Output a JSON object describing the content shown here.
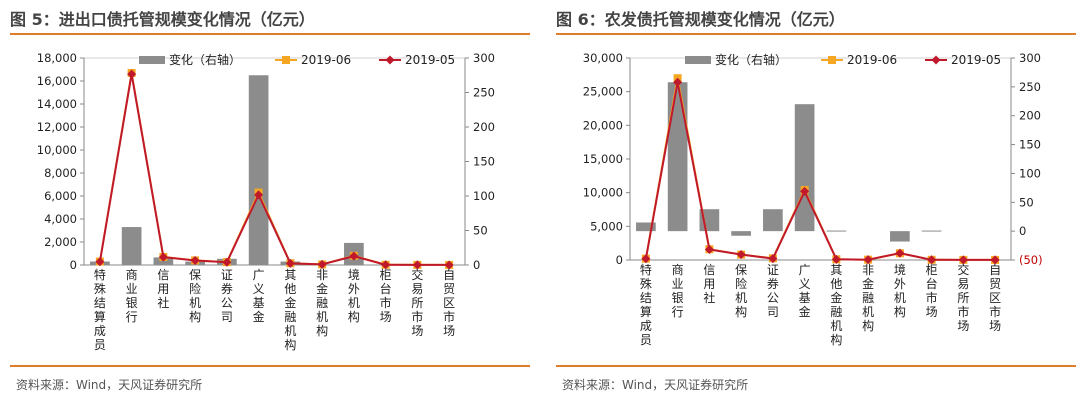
{
  "colors": {
    "accent": "#e07b2a",
    "bar": "#8c8c8c",
    "line_2019_06": "#f5a623",
    "line_2019_05": "#c0192c",
    "negative_tick": "#c00000"
  },
  "charts": [
    {
      "title": "图 5：进出口债托管规模变化情况（亿元）",
      "source": "资料来源：Wind，天风证券研究所",
      "chart_data": {
        "type": "bar",
        "categories": [
          "特殊结算成员",
          "商业银行",
          "信用社",
          "保险机构",
          "证券公司",
          "广义基金",
          "其他金融机构",
          "非金融机构",
          "境外机构",
          "柜台市场",
          "交易所市场",
          "自贸区市场"
        ],
        "yticks_left": [
          "0",
          "2,000",
          "4,000",
          "6,000",
          "8,000",
          "10,000",
          "12,000",
          "14,000",
          "16,000",
          "18,000"
        ],
        "yticks_right": [
          "0",
          "50",
          "100",
          "150",
          "200",
          "250",
          "300"
        ],
        "ylim_left": [
          0,
          18000
        ],
        "ylim_right": [
          0,
          300
        ],
        "legend": [
          "变化（右轴）",
          "2019-06",
          "2019-05"
        ],
        "series": [
          {
            "name": "变化（右轴）",
            "type": "bar",
            "axis": "right",
            "values": [
              5,
              55,
              11,
              5,
              9,
              275,
              5,
              1,
              32,
              0,
              0,
              0
            ]
          },
          {
            "name": "2019-06",
            "type": "line",
            "axis": "left",
            "values": [
              300,
              16700,
              700,
              400,
              250,
              6300,
              150,
              50,
              800,
              20,
              10,
              5
            ]
          },
          {
            "name": "2019-05",
            "type": "line",
            "axis": "left",
            "values": [
              280,
              16600,
              690,
              390,
              240,
              6100,
              140,
              50,
              770,
              20,
              10,
              5
            ]
          }
        ]
      }
    },
    {
      "title": "图 6：农发债托管规模变化情况（亿元）",
      "source": "资料来源：Wind，天风证券研究所",
      "chart_data": {
        "type": "bar",
        "categories": [
          "特殊结算成员",
          "商业银行",
          "信用社",
          "保险机构",
          "证券公司",
          "广义基金",
          "其他金融机构",
          "非金融机构",
          "境外机构",
          "柜台市场",
          "交易所市场",
          "自贸区市场"
        ],
        "yticks_left": [
          "0",
          "5,000",
          "10,000",
          "15,000",
          "20,000",
          "25,000",
          "30,000"
        ],
        "yticks_right": [
          "(50)",
          "0",
          "50",
          "100",
          "150",
          "200",
          "250",
          "300"
        ],
        "ylim_left": [
          0,
          30000
        ],
        "ylim_right": [
          -50,
          300
        ],
        "legend": [
          "变化（右轴）",
          "2019-06",
          "2019-05"
        ],
        "series": [
          {
            "name": "变化（右轴）",
            "type": "bar",
            "axis": "right",
            "values": [
              15,
              258,
              38,
              -8,
              38,
              220,
              1,
              0,
              -18,
              1,
              0,
              0
            ]
          },
          {
            "name": "2019-06",
            "type": "line",
            "axis": "left",
            "values": [
              200,
              27000,
              1600,
              800,
              250,
              10400,
              100,
              50,
              1000,
              30,
              20,
              10
            ]
          },
          {
            "name": "2019-05",
            "type": "line",
            "axis": "left",
            "values": [
              185,
              26400,
              1560,
              810,
              210,
              10200,
              100,
              50,
              1020,
              30,
              20,
              10
            ]
          }
        ]
      }
    }
  ]
}
